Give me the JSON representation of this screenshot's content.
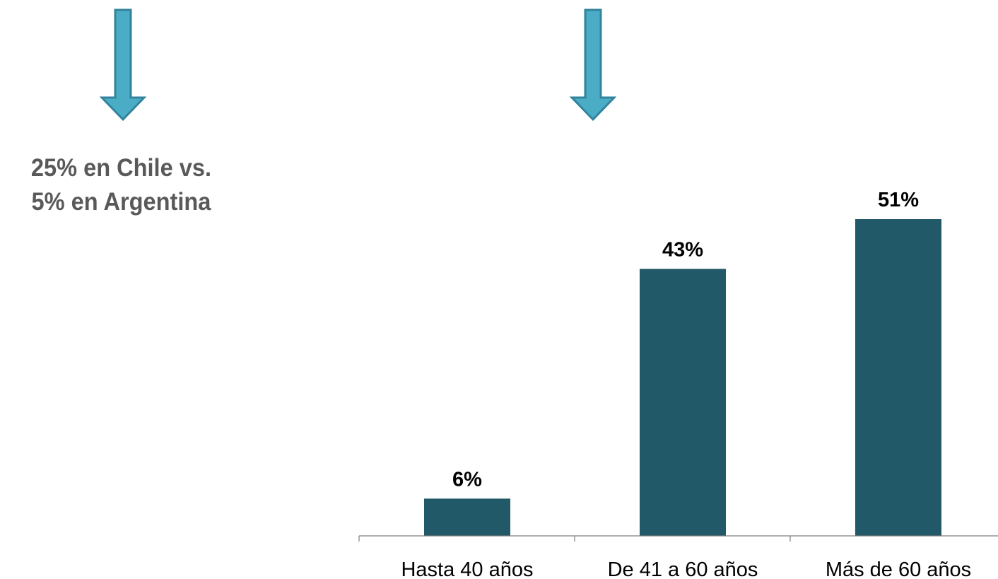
{
  "callout": {
    "line1": "25% en Chile vs.",
    "line2": "5% en Argentina"
  },
  "colors": {
    "bar": "#215968",
    "arrow_fill": "#4BACC6",
    "arrow_stroke": "#31849B",
    "callout_text": "#595959",
    "axis": "#7F7F7F"
  },
  "icons": [
    "down-arrow-icon",
    "down-arrow-icon"
  ],
  "chart_data": {
    "type": "bar",
    "categories": [
      "Hasta 40 años",
      "De 41 a 60 años",
      "Más de 60 años"
    ],
    "values": [
      6,
      43,
      51
    ],
    "data_labels": [
      "6%",
      "43%",
      "51%"
    ],
    "title": "",
    "xlabel": "",
    "ylabel": "",
    "ylim": [
      0,
      60
    ],
    "grid": false,
    "legend": "none"
  }
}
